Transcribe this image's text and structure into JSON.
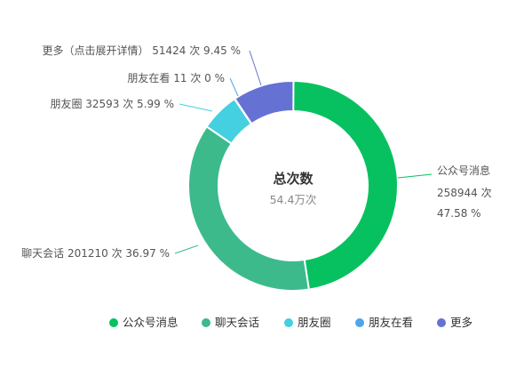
{
  "chart_data": {
    "type": "pie",
    "style": "donut",
    "center": {
      "title": "总次数",
      "value": "54.4万次"
    },
    "unit": "次",
    "slices": [
      {
        "name": "公众号消息",
        "value": 258944,
        "percent": "47.58 %",
        "color": "#07c160"
      },
      {
        "name": "聊天会话",
        "value": 201210,
        "percent": "36.97 %",
        "color": "#3cba8c"
      },
      {
        "name": "朋友圈",
        "value": 32593,
        "percent": "5.99 %",
        "color": "#44d0e1"
      },
      {
        "name": "朋友在看",
        "value": 11,
        "percent": "0 %",
        "color": "#4ea5e9"
      },
      {
        "name": "更多（点击展开详情）",
        "value": 51424,
        "percent": "9.45 %",
        "color": "#6571d3"
      }
    ],
    "legend": {
      "position": "bottom",
      "items": [
        "公众号消息",
        "聊天会话",
        "朋友圈",
        "朋友在看",
        "更多"
      ]
    }
  }
}
